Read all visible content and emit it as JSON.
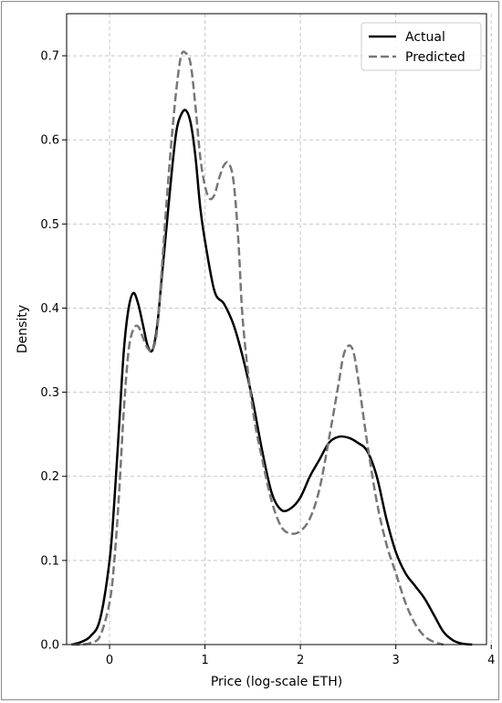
{
  "chart_data": {
    "type": "line",
    "title": "",
    "xlabel": "Price (log-scale ETH)",
    "ylabel": "Density",
    "xlim": [
      -0.45,
      3.95
    ],
    "ylim": [
      0.0,
      0.75
    ],
    "x_ticks": [
      0,
      1,
      2,
      3,
      4
    ],
    "y_ticks": [
      0.0,
      0.1,
      0.2,
      0.3,
      0.4,
      0.5,
      0.6,
      0.7
    ],
    "x_tick_labels": [
      "0",
      "1",
      "2",
      "3",
      "4"
    ],
    "y_tick_labels": [
      "0.0",
      "0.1",
      "0.2",
      "0.3",
      "0.4",
      "0.5",
      "0.6",
      "0.7"
    ],
    "grid": true,
    "legend_position": "top-right",
    "series": [
      {
        "name": "Actual",
        "style": "solid",
        "color": "#000000",
        "x": [
          -0.4,
          -0.3,
          -0.2,
          -0.1,
          0.0,
          0.05,
          0.1,
          0.15,
          0.2,
          0.25,
          0.3,
          0.35,
          0.4,
          0.45,
          0.5,
          0.55,
          0.6,
          0.65,
          0.7,
          0.75,
          0.8,
          0.85,
          0.9,
          0.95,
          1.0,
          1.1,
          1.2,
          1.3,
          1.4,
          1.5,
          1.6,
          1.7,
          1.8,
          1.9,
          2.0,
          2.1,
          2.2,
          2.3,
          2.4,
          2.5,
          2.6,
          2.7,
          2.8,
          2.9,
          3.0,
          3.1,
          3.2,
          3.3,
          3.4,
          3.5,
          3.6,
          3.7,
          3.8
        ],
        "y": [
          0.0,
          0.003,
          0.01,
          0.03,
          0.1,
          0.17,
          0.26,
          0.35,
          0.4,
          0.418,
          0.405,
          0.38,
          0.355,
          0.35,
          0.38,
          0.44,
          0.5,
          0.56,
          0.61,
          0.63,
          0.635,
          0.62,
          0.58,
          0.52,
          0.48,
          0.42,
          0.405,
          0.38,
          0.34,
          0.29,
          0.23,
          0.18,
          0.16,
          0.162,
          0.175,
          0.2,
          0.22,
          0.24,
          0.247,
          0.246,
          0.24,
          0.23,
          0.2,
          0.15,
          0.11,
          0.085,
          0.07,
          0.055,
          0.035,
          0.015,
          0.005,
          0.001,
          0.0
        ]
      },
      {
        "name": "Predicted",
        "style": "dashed",
        "color": "#777777",
        "x": [
          -0.4,
          -0.3,
          -0.2,
          -0.1,
          0.0,
          0.05,
          0.1,
          0.15,
          0.2,
          0.25,
          0.3,
          0.35,
          0.4,
          0.45,
          0.5,
          0.55,
          0.6,
          0.65,
          0.7,
          0.75,
          0.8,
          0.85,
          0.9,
          0.95,
          1.0,
          1.05,
          1.1,
          1.15,
          1.2,
          1.25,
          1.3,
          1.35,
          1.4,
          1.5,
          1.6,
          1.7,
          1.8,
          1.9,
          2.0,
          2.1,
          2.2,
          2.3,
          2.4,
          2.45,
          2.5,
          2.55,
          2.6,
          2.7,
          2.8,
          2.9,
          3.0,
          3.1,
          3.2,
          3.3,
          3.4,
          3.5
        ],
        "y": [
          0.0,
          0.0,
          0.002,
          0.01,
          0.05,
          0.1,
          0.18,
          0.28,
          0.35,
          0.375,
          0.378,
          0.365,
          0.352,
          0.35,
          0.375,
          0.45,
          0.53,
          0.6,
          0.66,
          0.7,
          0.703,
          0.69,
          0.64,
          0.58,
          0.545,
          0.53,
          0.535,
          0.555,
          0.57,
          0.572,
          0.55,
          0.48,
          0.38,
          0.28,
          0.22,
          0.17,
          0.14,
          0.132,
          0.135,
          0.15,
          0.185,
          0.245,
          0.31,
          0.343,
          0.355,
          0.35,
          0.32,
          0.24,
          0.17,
          0.12,
          0.085,
          0.05,
          0.025,
          0.01,
          0.003,
          0.0
        ]
      }
    ]
  }
}
